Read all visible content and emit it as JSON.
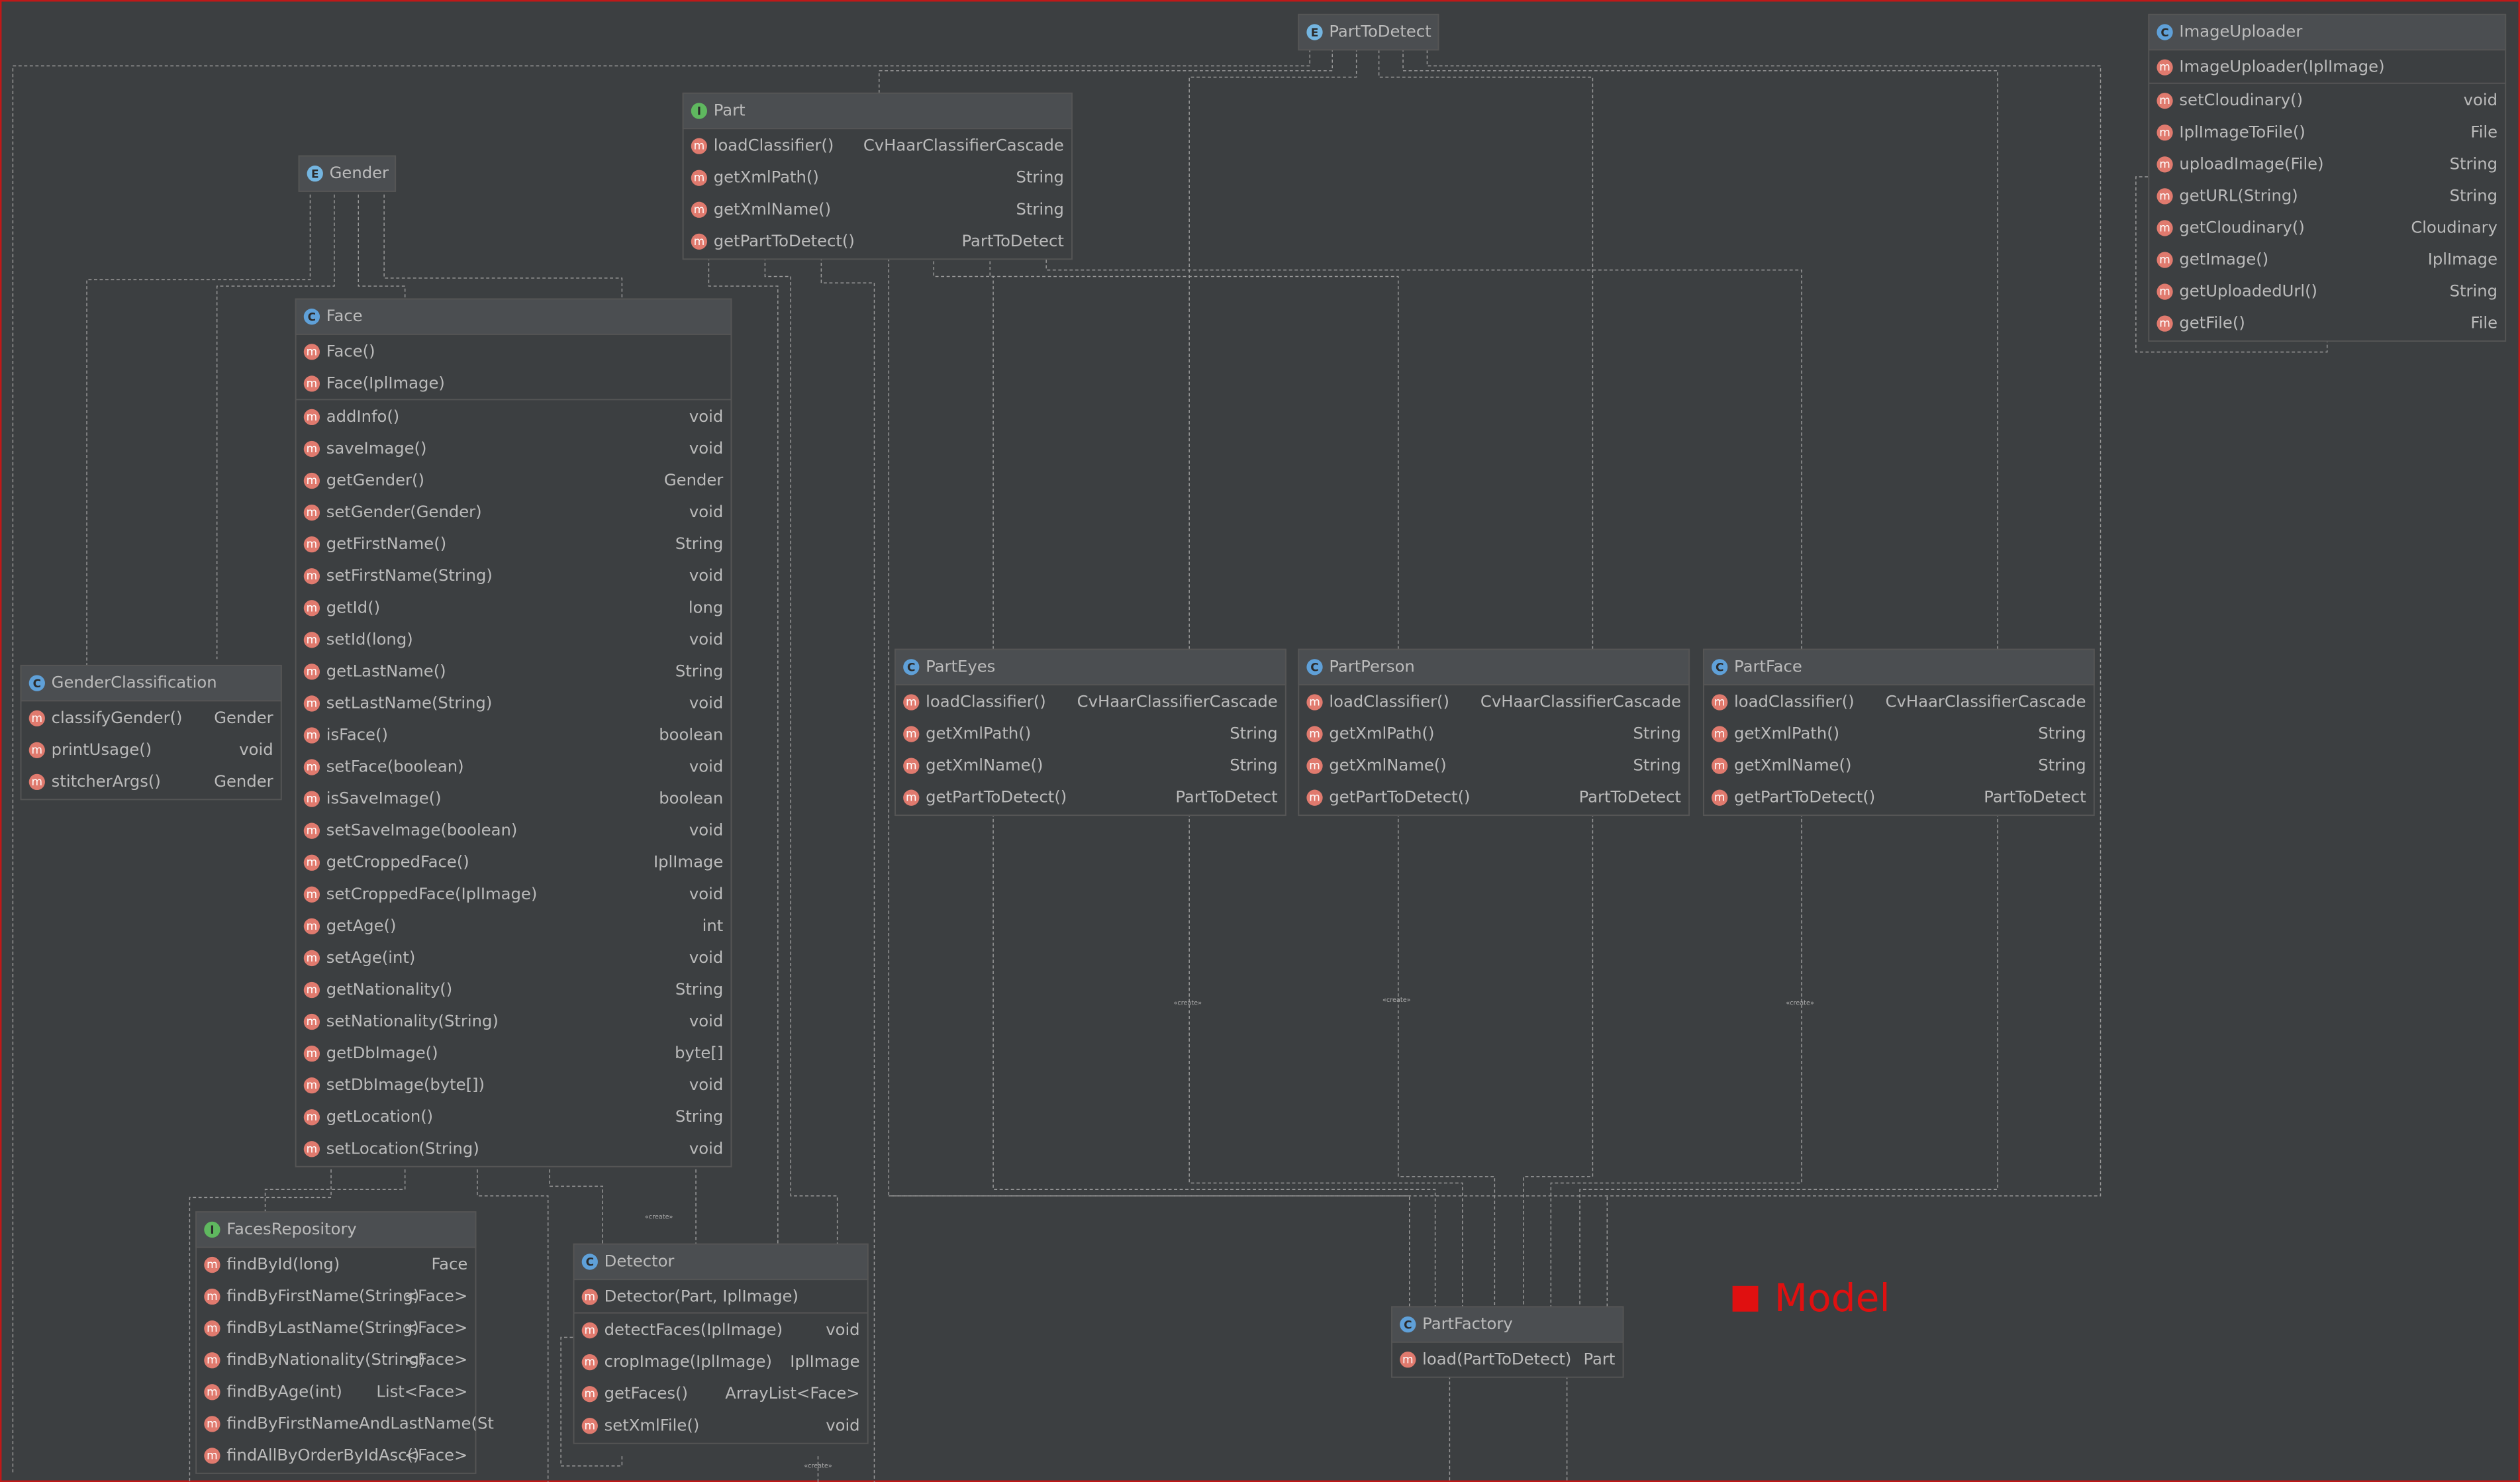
{
  "member_icon": "m",
  "nodes": [
    {
      "kind": "E",
      "name": "PartToDetect"
    },
    {
      "kind": "C",
      "name": "ImageUploader",
      "constructors": [
        {
          "name": "ImageUploader(IplImage)"
        }
      ],
      "methods": [
        {
          "name": "setCloudinary()",
          "type": "void"
        },
        {
          "name": "IplImageToFile()",
          "type": "File"
        },
        {
          "name": "uploadImage(File)",
          "type": "String"
        },
        {
          "name": "getURL(String)",
          "type": "String"
        },
        {
          "name": "getCloudinary()",
          "type": "Cloudinary"
        },
        {
          "name": "getImage()",
          "type": "IplImage"
        },
        {
          "name": "getUploadedUrl()",
          "type": "String"
        },
        {
          "name": "getFile()",
          "type": "File"
        }
      ]
    },
    {
      "kind": "I",
      "name": "Part",
      "methods": [
        {
          "name": "loadClassifier()",
          "type": "CvHaarClassifierCascade"
        },
        {
          "name": "getXmlPath()",
          "type": "String"
        },
        {
          "name": "getXmlName()",
          "type": "String"
        },
        {
          "name": "getPartToDetect()",
          "type": "PartToDetect"
        }
      ]
    },
    {
      "kind": "E",
      "name": "Gender"
    },
    {
      "kind": "C",
      "name": "Face",
      "constructors": [
        {
          "name": "Face()"
        },
        {
          "name": "Face(IplImage)"
        }
      ],
      "methods": [
        {
          "name": "addInfo()",
          "type": "void"
        },
        {
          "name": "saveImage()",
          "type": "void"
        },
        {
          "name": "getGender()",
          "type": "Gender"
        },
        {
          "name": "setGender(Gender)",
          "type": "void"
        },
        {
          "name": "getFirstName()",
          "type": "String"
        },
        {
          "name": "setFirstName(String)",
          "type": "void"
        },
        {
          "name": "getId()",
          "type": "long"
        },
        {
          "name": "setId(long)",
          "type": "void"
        },
        {
          "name": "getLastName()",
          "type": "String"
        },
        {
          "name": "setLastName(String)",
          "type": "void"
        },
        {
          "name": "isFace()",
          "type": "boolean"
        },
        {
          "name": "setFace(boolean)",
          "type": "void"
        },
        {
          "name": "isSaveImage()",
          "type": "boolean"
        },
        {
          "name": "setSaveImage(boolean)",
          "type": "void"
        },
        {
          "name": "getCroppedFace()",
          "type": "IplImage"
        },
        {
          "name": "setCroppedFace(IplImage)",
          "type": "void"
        },
        {
          "name": "getAge()",
          "type": "int"
        },
        {
          "name": "setAge(int)",
          "type": "void"
        },
        {
          "name": "getNationality()",
          "type": "String"
        },
        {
          "name": "setNationality(String)",
          "type": "void"
        },
        {
          "name": "getDbImage()",
          "type": "byte[]"
        },
        {
          "name": "setDbImage(byte[])",
          "type": "void"
        },
        {
          "name": "getLocation()",
          "type": "String"
        },
        {
          "name": "setLocation(String)",
          "type": "void"
        }
      ]
    },
    {
      "kind": "C",
      "name": "GenderClassification",
      "methods": [
        {
          "name": "classifyGender()",
          "type": "Gender"
        },
        {
          "name": "printUsage()",
          "type": "void"
        },
        {
          "name": "stitcherArgs()",
          "type": "Gender"
        }
      ]
    },
    {
      "kind": "C",
      "name": "PartEyes",
      "methods": [
        {
          "name": "loadClassifier()",
          "type": "CvHaarClassifierCascade"
        },
        {
          "name": "getXmlPath()",
          "type": "String"
        },
        {
          "name": "getXmlName()",
          "type": "String"
        },
        {
          "name": "getPartToDetect()",
          "type": "PartToDetect"
        }
      ]
    },
    {
      "kind": "C",
      "name": "PartPerson",
      "methods": [
        {
          "name": "loadClassifier()",
          "type": "CvHaarClassifierCascade"
        },
        {
          "name": "getXmlPath()",
          "type": "String"
        },
        {
          "name": "getXmlName()",
          "type": "String"
        },
        {
          "name": "getPartToDetect()",
          "type": "PartToDetect"
        }
      ]
    },
    {
      "kind": "C",
      "name": "PartFace",
      "methods": [
        {
          "name": "loadClassifier()",
          "type": "CvHaarClassifierCascade"
        },
        {
          "name": "getXmlPath()",
          "type": "String"
        },
        {
          "name": "getXmlName()",
          "type": "String"
        },
        {
          "name": "getPartToDetect()",
          "type": "PartToDetect"
        }
      ]
    },
    {
      "kind": "I",
      "name": "FacesRepository",
      "methods": [
        {
          "name": "findById(long)",
          "type": "Face"
        },
        {
          "name": "findByFirstName(String)",
          "type": "<Face>"
        },
        {
          "name": "findByLastName(String)",
          "type": "<Face>"
        },
        {
          "name": "findByNationality(String)",
          "type": "<Face>"
        },
        {
          "name": "findByAge(int)",
          "type": "List<Face>"
        },
        {
          "name": "findByFirstNameAndLastName(St"
        },
        {
          "name": "findAllByOrderByIdAsc()",
          "type": "<Face>"
        }
      ]
    },
    {
      "kind": "C",
      "name": "Detector",
      "constructors": [
        {
          "name": "Detector(Part, IplImage)"
        }
      ],
      "methods": [
        {
          "name": "detectFaces(IplImage)",
          "type": "void"
        },
        {
          "name": "cropImage(IplImage)",
          "type": "IplImage"
        },
        {
          "name": "getFaces()",
          "type": "ArrayList<Face>"
        },
        {
          "name": "setXmlFile()",
          "type": "void"
        }
      ]
    },
    {
      "kind": "C",
      "name": "PartFactory",
      "methods": [
        {
          "name": "load(PartToDetect)",
          "type": "Part"
        }
      ]
    }
  ],
  "edge_labels": [
    "«create»",
    "«create»",
    "«create»",
    "«create»",
    "«create»"
  ],
  "package_label": "Model"
}
